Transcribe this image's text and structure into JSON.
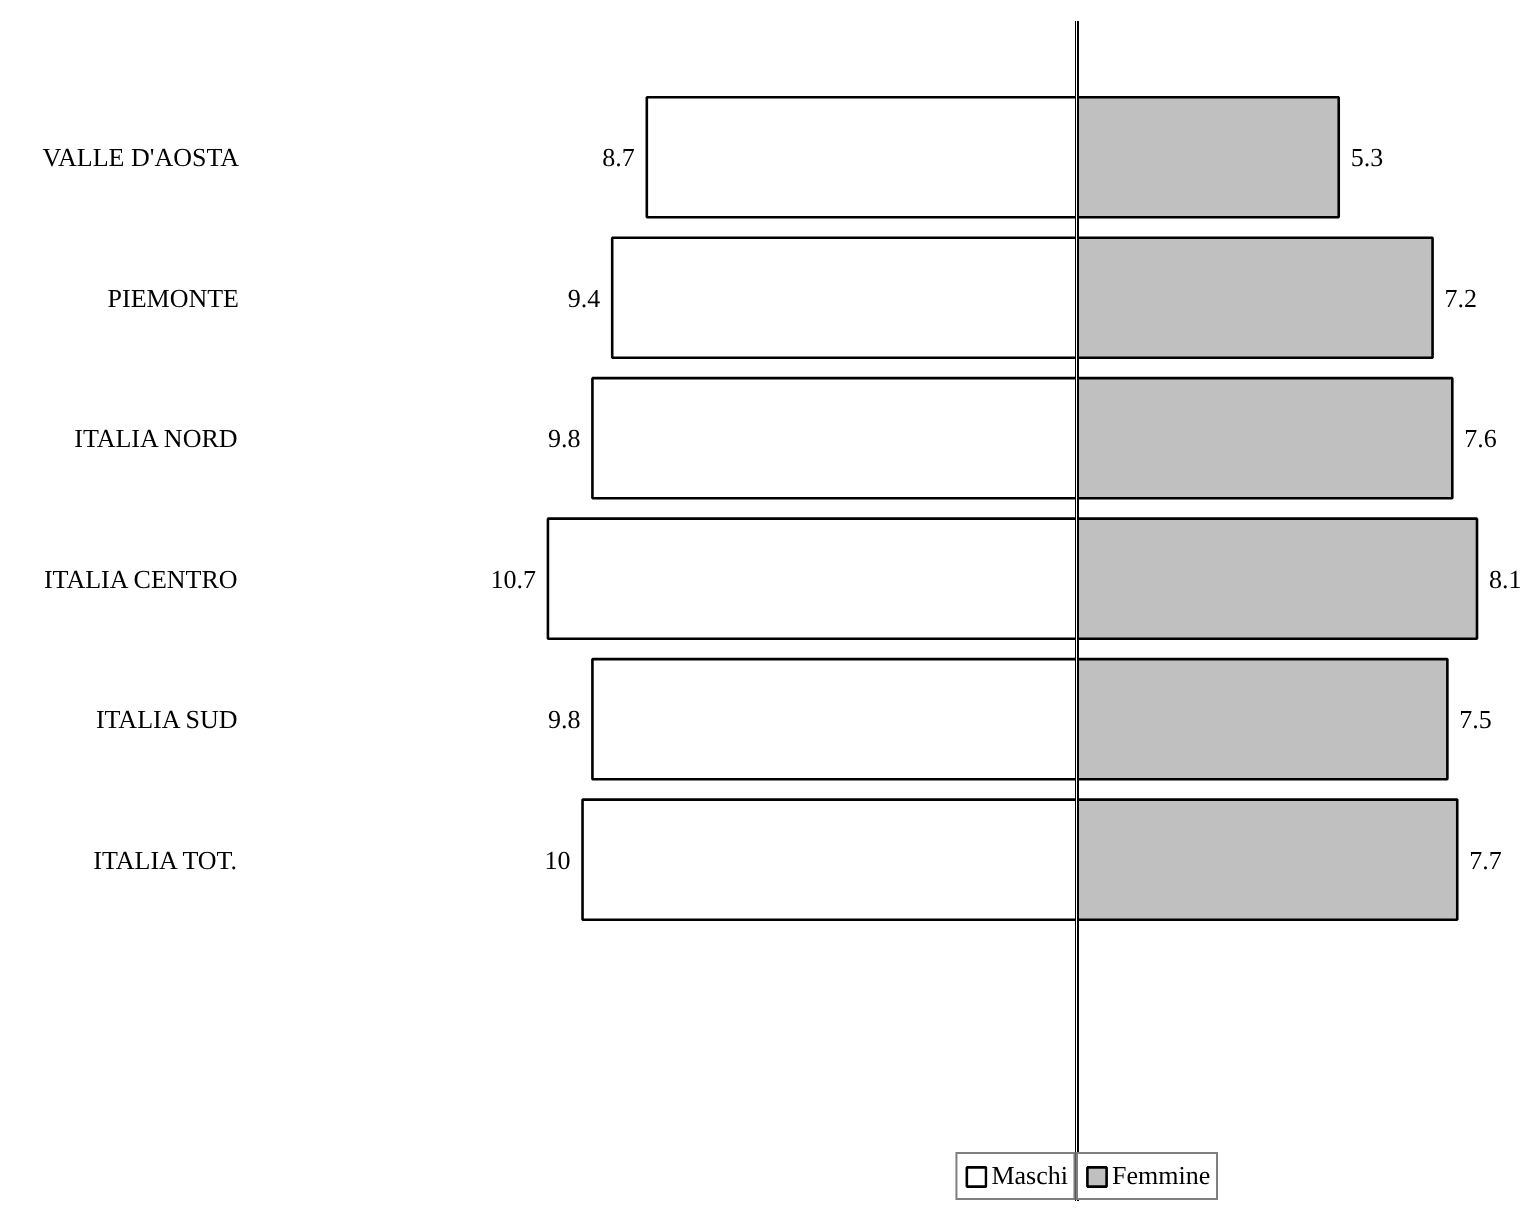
{
  "chart_data": [
    {
      "type": "bar",
      "orientation": "horizontal",
      "categories": [
        "VALLE D'AOSTA",
        "PIEMONTE",
        "ITALIA NORD",
        "ITALIA CENTRO",
        "ITALIA SUD",
        "ITALIA TOT."
      ],
      "series": [
        {
          "name": "Maschi",
          "color": "#ffffff",
          "values": [
            8.7,
            9.4,
            9.8,
            10.7,
            9.8,
            10
          ]
        }
      ],
      "data_labels": true,
      "tick_labels": "y",
      "legend": "bottom right"
    },
    {
      "type": "bar",
      "orientation": "horizontal",
      "categories": [
        null,
        null,
        null,
        null,
        null,
        null
      ],
      "series": [
        {
          "name": "Femmine",
          "color": "#c0c0c0",
          "values": [
            5.3,
            7.2,
            7.6,
            8.1,
            7.5,
            7.7
          ]
        }
      ],
      "data_labels": true,
      "tick_labels": false,
      "legend": "bottom left"
    }
  ]
}
